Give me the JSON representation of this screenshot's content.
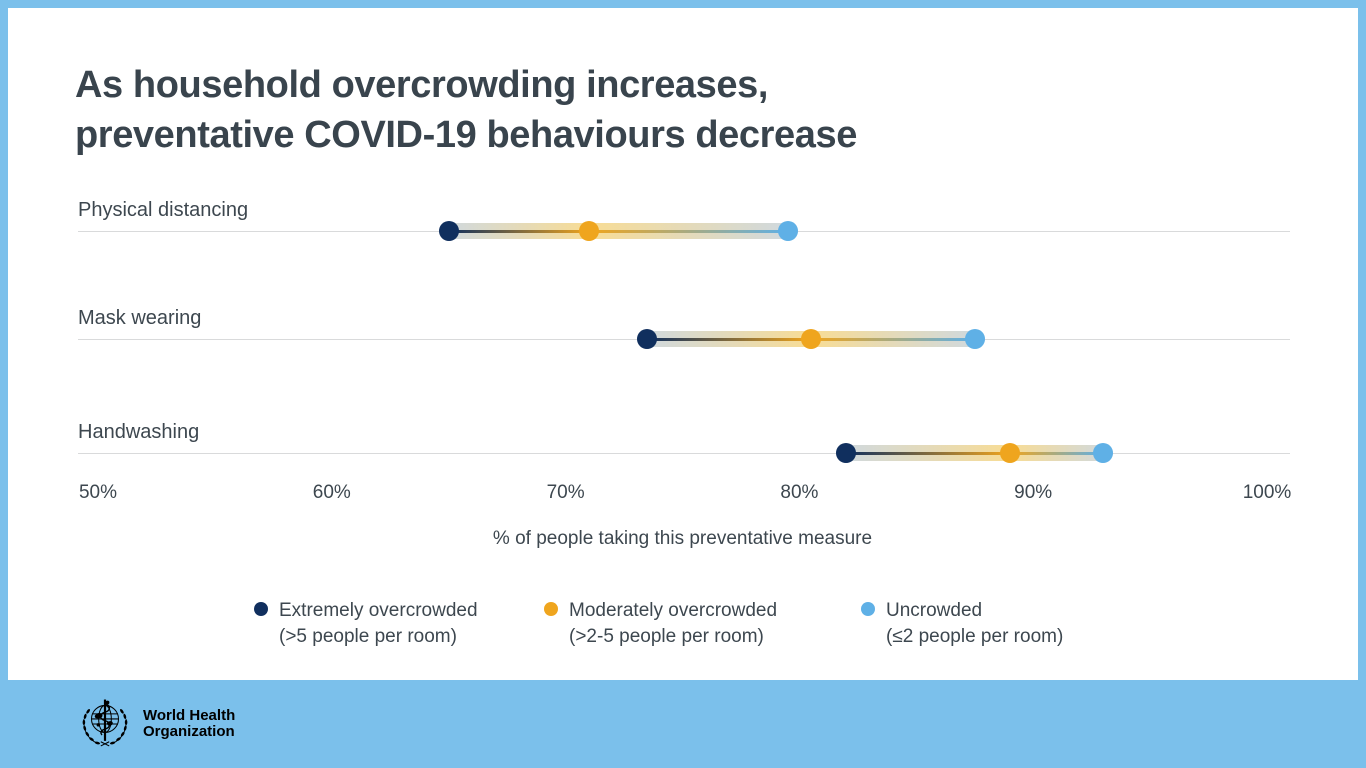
{
  "title": "As household overcrowding increases,\npreventative COVID-19 behaviours decrease",
  "chart_data": {
    "type": "scatter",
    "variant": "dumbbell",
    "categories": [
      "Physical distancing",
      "Mask wearing",
      "Handwashing"
    ],
    "series": [
      {
        "name": "Extremely overcrowded (>5 people per room)",
        "color": "#102f5e",
        "values": [
          65,
          73.5,
          82
        ]
      },
      {
        "name": "Moderately overcrowded (>2-5 people per room)",
        "color": "#efa51e",
        "values": [
          71,
          80.5,
          89
        ]
      },
      {
        "name": "Uncrowded (≤2 people per room)",
        "color": "#5fb0e6",
        "values": [
          79.5,
          87.5,
          93
        ]
      }
    ],
    "xlabel": "% of people taking this preventative measure",
    "xlim": [
      50,
      100
    ],
    "xticks": [
      {
        "value": 50,
        "label": "50%"
      },
      {
        "value": 60,
        "label": "60%"
      },
      {
        "value": 70,
        "label": "70%"
      },
      {
        "value": 80,
        "label": "80%"
      },
      {
        "value": 90,
        "label": "90%"
      },
      {
        "value": 100,
        "label": "100%"
      }
    ],
    "grid": "one horizontal line per category row",
    "legend_position": "bottom"
  },
  "legend": {
    "items": [
      {
        "line1": "Extremely overcrowded",
        "line2": "(>5 people per room)",
        "color": "#102f5e"
      },
      {
        "line1": "Moderately overcrowded",
        "line2": "(>2-5 people per room)",
        "color": "#efa51e"
      },
      {
        "line1": "Uncrowded",
        "line2": "(≤2 people per room)",
        "color": "#5fb0e6"
      }
    ]
  },
  "footer": {
    "logo_line1": "World Health",
    "logo_line2": "Organization"
  },
  "colors": {
    "background": "#7bc0eb",
    "card": "#ffffff",
    "title_text": "#39444d",
    "body_text": "#3d474f",
    "gridline": "#d9dadb",
    "navy": "#102f5e",
    "orange": "#efa51e",
    "sky_blue": "#5fb0e6"
  }
}
